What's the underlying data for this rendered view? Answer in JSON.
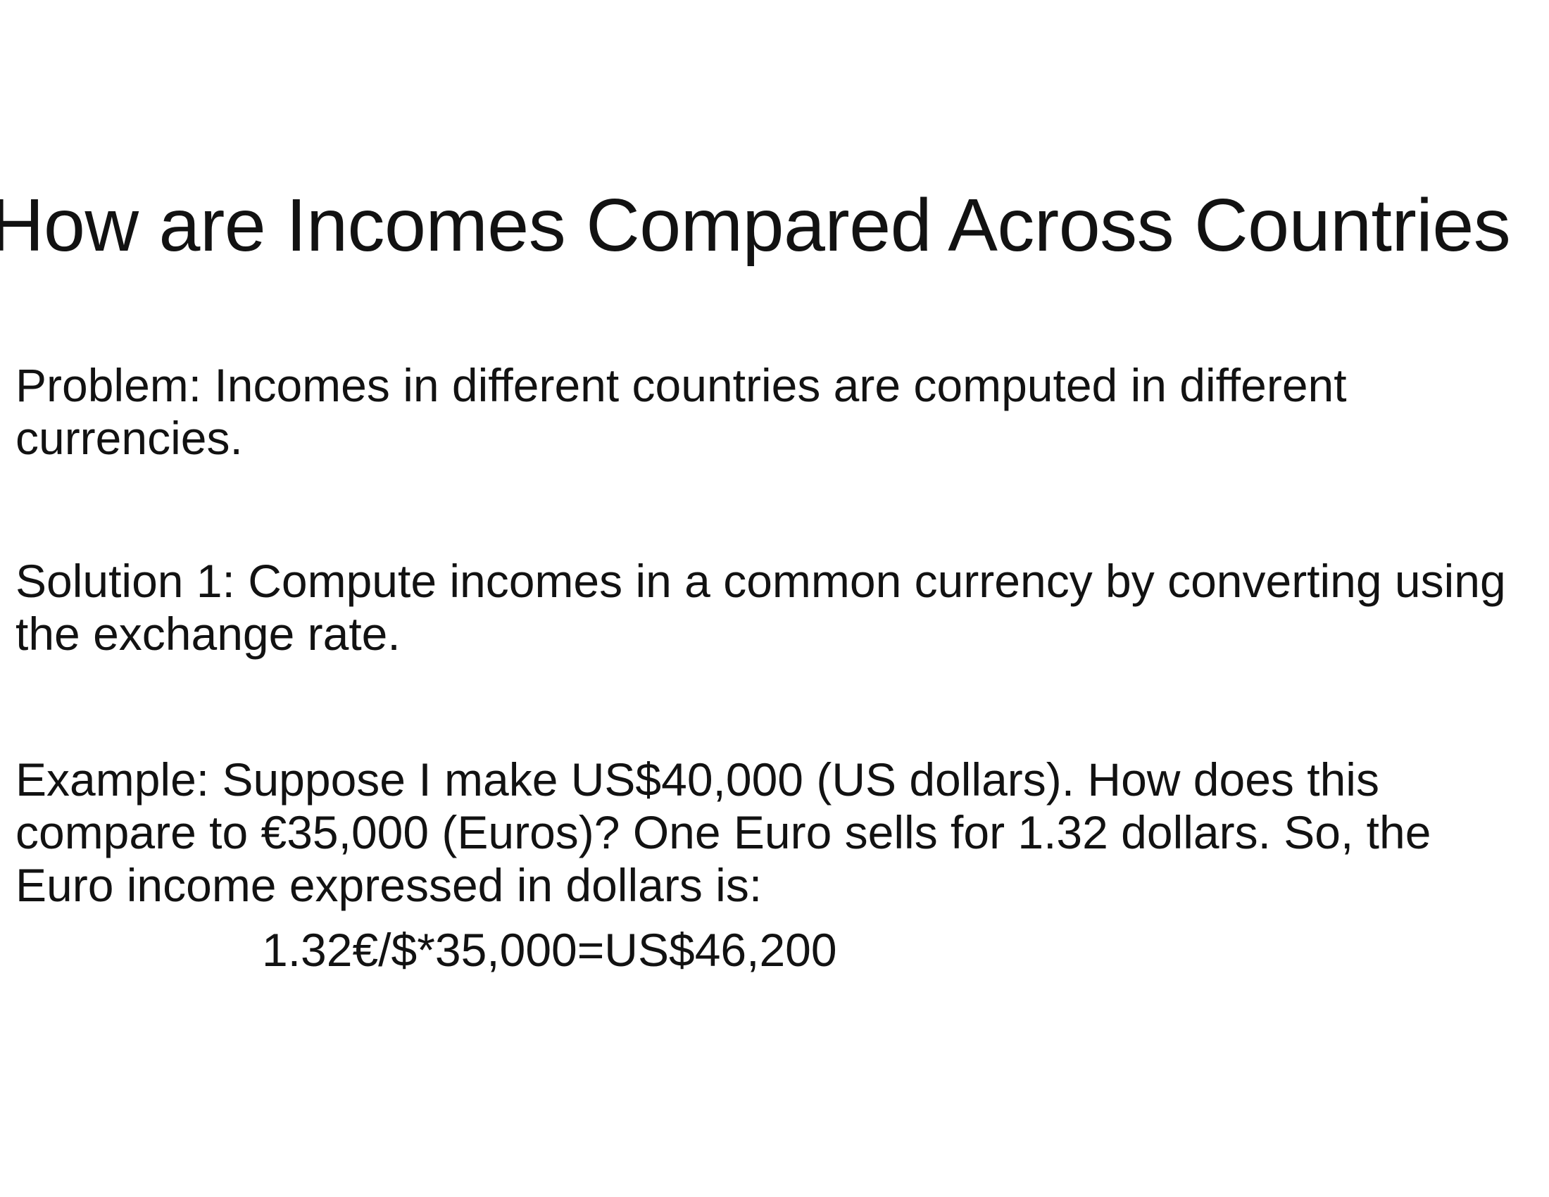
{
  "slide": {
    "title": "How are Incomes Compared Across Countries",
    "problem": "Problem: Incomes in different countries are computed in different currencies.",
    "solution": "Solution 1: Compute incomes in a common currency by converting using the exchange rate.",
    "example": "Example: Suppose I make US$40,000 (US dollars). How does this compare to €35,000 (Euros)? One Euro sells for 1.32 dollars. So, the Euro income expressed in dollars is:",
    "formula": "1.32€/$*35,000=US$46,200"
  }
}
